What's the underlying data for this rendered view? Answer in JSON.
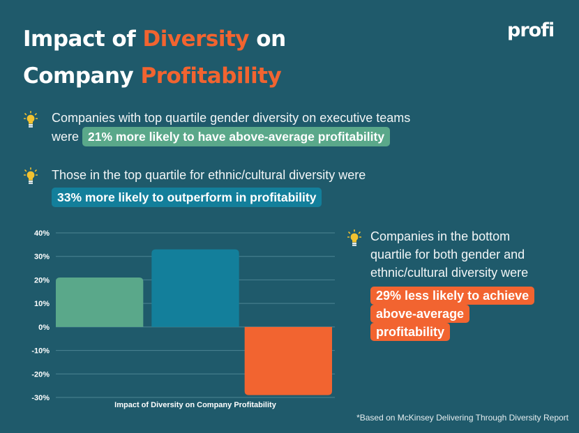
{
  "title": {
    "part1": "Impact of ",
    "highlight1": "Diversity",
    "part2": " on",
    "part3": "Company ",
    "highlight2": "Profitability"
  },
  "logo": "profi",
  "stats": [
    {
      "icon": "lightbulb-icon",
      "text_line1": "Companies with top quartile gender diversity on executive teams",
      "text_prefix": "were",
      "pill": "21% more likely to have above-average profitability",
      "pill_color": "#5aa88a"
    },
    {
      "icon": "lightbulb-icon",
      "text_line1": "Those in the top quartile for ethnic/cultural diversity were",
      "pill": "33% more likely to outperform in profitability",
      "pill_color": "#137f9b"
    },
    {
      "icon": "lightbulb-icon",
      "text_lines": [
        "Companies in the bottom",
        "quartile for both gender and",
        "ethnic/cultural diversity were"
      ],
      "pill_lines": [
        "29% less likely to achieve",
        "above-average",
        "profitability"
      ],
      "pill_color": "#f26430"
    }
  ],
  "footnote": "*Based on McKinsey Delivering Through Diversity Report",
  "colors": {
    "background": "#1f5a6b",
    "accent_orange": "#f26430",
    "green": "#5aa88a",
    "blue": "#137f9b"
  },
  "chart_data": {
    "type": "bar",
    "xlabel": "Impact of Diversity on Company Profitability",
    "ylabel": "",
    "ylim": [
      -30,
      40
    ],
    "yticks": [
      40,
      30,
      20,
      10,
      0,
      -10,
      -20,
      -30
    ],
    "ytick_labels": [
      "40%",
      "30%",
      "20%",
      "10%",
      "0%",
      "-10%",
      "-20%",
      "-30%"
    ],
    "grid": true,
    "values": [
      21,
      33,
      -29
    ],
    "bar_colors": [
      "#5aa88a",
      "#137f9b",
      "#f26430"
    ]
  }
}
